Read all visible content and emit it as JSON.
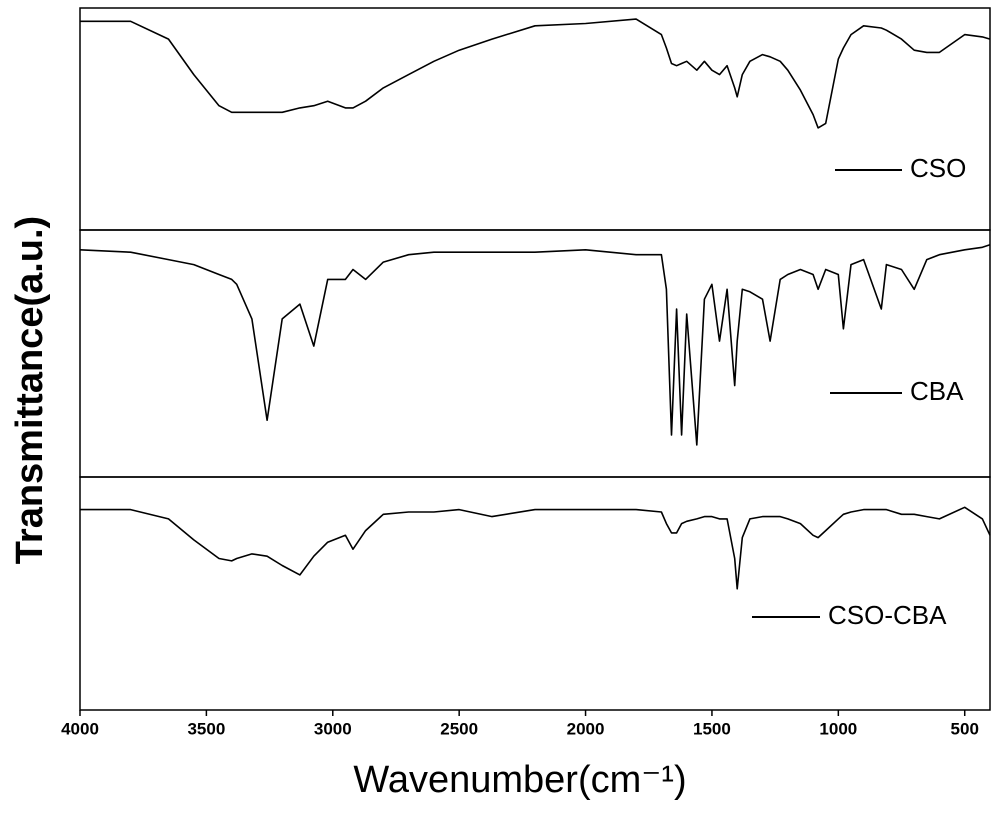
{
  "chart_data": {
    "type": "line",
    "layout": "stacked",
    "xlabel": "Wavenumber(cm⁻¹)",
    "ylabel": "Transmittance(a.u.)",
    "xlim": [
      4000,
      400
    ],
    "xticks": [
      4000,
      3500,
      3000,
      2500,
      2000,
      1500,
      1000,
      500
    ],
    "ylim": [
      0,
      100
    ],
    "x": [
      4000,
      3800,
      3650,
      3550,
      3450,
      3400,
      3380,
      3320,
      3260,
      3200,
      3130,
      3075,
      3020,
      2950,
      2920,
      2870,
      2800,
      2700,
      2600,
      2500,
      2370,
      2200,
      2000,
      1800,
      1700,
      1680,
      1660,
      1640,
      1620,
      1600,
      1560,
      1530,
      1500,
      1470,
      1440,
      1410,
      1400,
      1380,
      1350,
      1300,
      1270,
      1230,
      1200,
      1150,
      1100,
      1080,
      1050,
      1000,
      980,
      950,
      900,
      830,
      810,
      750,
      700,
      650,
      600,
      500,
      430,
      400
    ],
    "series": [
      {
        "name": "CSO",
        "color": "#000000",
        "values": [
          94,
          94,
          86,
          70,
          56,
          53,
          53,
          53,
          53,
          53,
          55,
          56,
          58,
          55,
          55,
          58,
          64,
          70,
          76,
          81,
          86,
          92,
          93,
          95,
          88,
          82,
          75,
          74,
          75,
          76,
          72,
          76,
          72,
          70,
          74,
          64,
          60,
          70,
          76,
          79,
          78,
          76,
          72,
          63,
          52,
          46,
          48,
          77,
          82,
          88,
          92,
          91,
          90,
          86,
          81,
          80,
          80,
          88,
          87,
          86
        ]
      },
      {
        "name": "CBA",
        "color": "#000000",
        "values": [
          92,
          91,
          88,
          86,
          82,
          80,
          78,
          64,
          23,
          64,
          70,
          53,
          80,
          80,
          84,
          80,
          87,
          90,
          91,
          91,
          91,
          91,
          92,
          90,
          90,
          76,
          17,
          68,
          17,
          66,
          13,
          72,
          78,
          55,
          76,
          37,
          55,
          76,
          75,
          72,
          55,
          80,
          82,
          84,
          82,
          76,
          84,
          82,
          60,
          86,
          88,
          68,
          86,
          84,
          76,
          88,
          90,
          92,
          93,
          94
        ]
      },
      {
        "name": "CSO-CBA",
        "color": "#000000",
        "values": [
          86,
          86,
          82,
          73,
          65,
          64,
          65,
          67,
          66,
          62,
          58,
          66,
          72,
          75,
          69,
          77,
          84,
          85,
          85,
          86,
          83,
          86,
          86,
          86,
          85,
          80,
          76,
          76,
          80,
          81,
          82,
          83,
          83,
          82,
          82,
          65,
          52,
          74,
          82,
          83,
          83,
          83,
          82,
          80,
          75,
          74,
          77,
          82,
          84,
          85,
          86,
          86,
          86,
          84,
          84,
          83,
          82,
          87,
          82,
          75
        ]
      }
    ]
  }
}
